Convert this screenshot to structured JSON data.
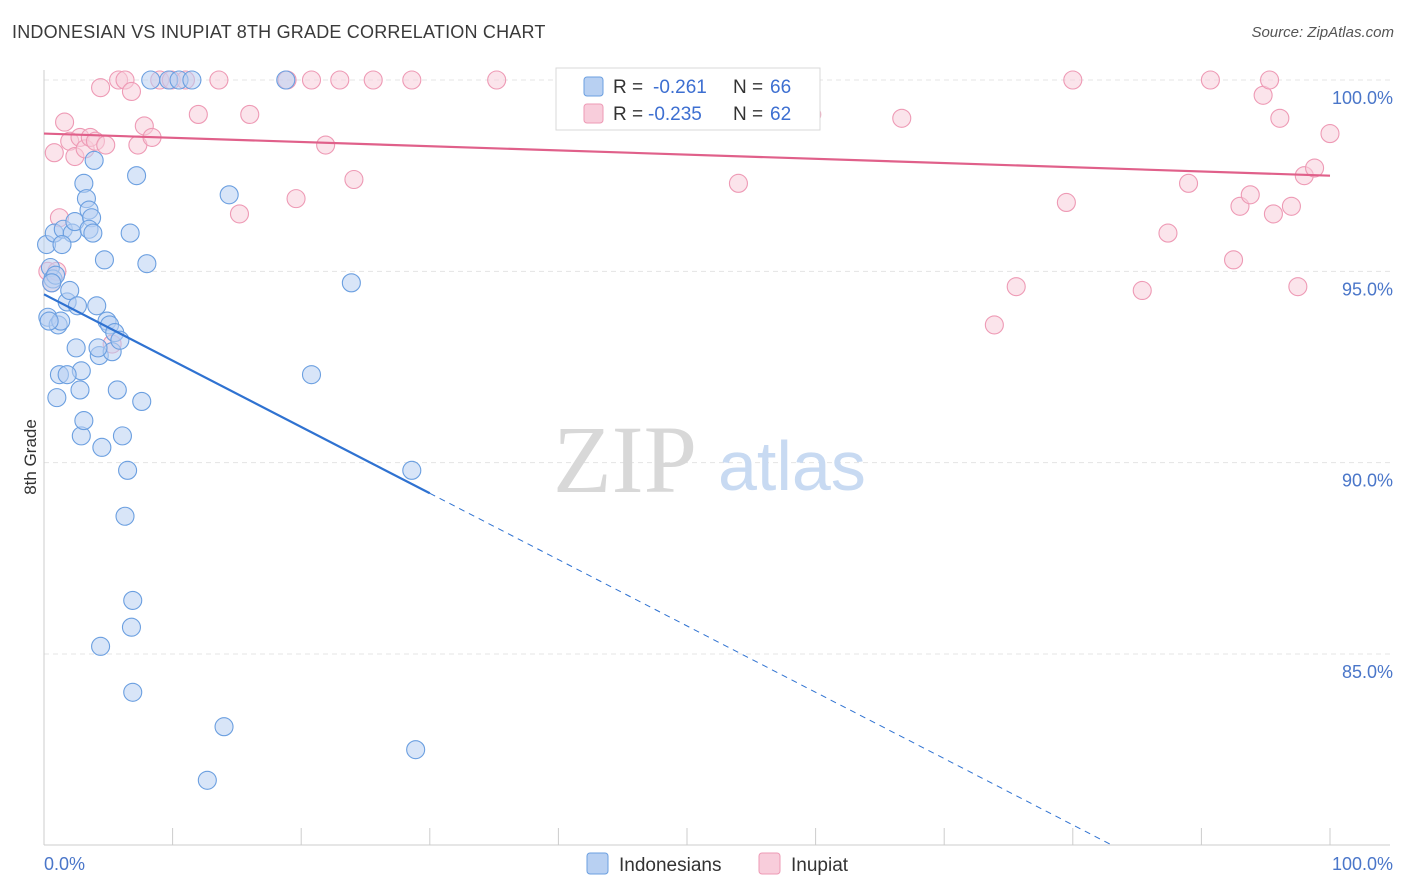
{
  "header": {
    "title": "INDONESIAN VS INUPIAT 8TH GRADE CORRELATION CHART",
    "source": "Source: ZipAtlas.com"
  },
  "watermark": {
    "zip": "ZIP",
    "atlas": "atlas"
  },
  "chart_data": {
    "type": "scatter",
    "title": "INDONESIAN VS INUPIAT 8TH GRADE CORRELATION CHART",
    "xlabel": "",
    "ylabel": "8th Grade",
    "xlim": [
      0,
      100
    ],
    "ylim": [
      80,
      100.8
    ],
    "x_tick_labels": [
      "0.0%",
      "100.0%"
    ],
    "y_ticks": [
      85,
      90,
      95,
      100
    ],
    "y_tick_labels": [
      "85.0%",
      "90.0%",
      "95.0%",
      "100.0%"
    ],
    "grid": true,
    "legend": {
      "position": "top-center",
      "entries": [
        {
          "r_label": "R =",
          "r_value": "-0.261",
          "n_label": "N =",
          "n_value": "66"
        },
        {
          "r_label": "R =",
          "r_value": "-0.235",
          "n_label": "N =",
          "n_value": "62"
        }
      ]
    },
    "series": [
      {
        "name": "Indonesians",
        "color": "#6b9fe0",
        "fill": "#b8d0f2",
        "line_color": "#2f72d1",
        "trend": {
          "x0": 0,
          "y0": 94.4,
          "x1": 30,
          "y1": 89.2,
          "dash_to_x": 100
        },
        "points": [
          [
            0.2,
            95.7
          ],
          [
            0.5,
            95.1
          ],
          [
            0.7,
            94.8
          ],
          [
            0.9,
            94.9
          ],
          [
            0.3,
            93.8
          ],
          [
            0.8,
            96.0
          ],
          [
            1.1,
            93.6
          ],
          [
            1.3,
            93.7
          ],
          [
            1.2,
            92.3
          ],
          [
            1.0,
            91.7
          ],
          [
            1.5,
            96.1
          ],
          [
            1.8,
            94.2
          ],
          [
            2.0,
            94.5
          ],
          [
            2.2,
            96.0
          ],
          [
            2.4,
            96.3
          ],
          [
            2.6,
            94.1
          ],
          [
            2.8,
            91.9
          ],
          [
            2.9,
            92.4
          ],
          [
            3.1,
            97.3
          ],
          [
            3.3,
            96.9
          ],
          [
            3.5,
            96.6
          ],
          [
            3.7,
            96.4
          ],
          [
            3.9,
            97.9
          ],
          [
            4.1,
            94.1
          ],
          [
            4.3,
            92.8
          ],
          [
            4.5,
            90.4
          ],
          [
            4.7,
            95.3
          ],
          [
            4.9,
            93.7
          ],
          [
            5.1,
            93.6
          ],
          [
            5.3,
            92.9
          ],
          [
            5.5,
            93.4
          ],
          [
            5.7,
            91.9
          ],
          [
            5.9,
            93.2
          ],
          [
            6.1,
            90.7
          ],
          [
            6.3,
            88.6
          ],
          [
            6.5,
            89.8
          ],
          [
            6.7,
            96.0
          ],
          [
            6.9,
            86.4
          ],
          [
            7.2,
            97.5
          ],
          [
            7.6,
            91.6
          ],
          [
            8.0,
            95.2
          ],
          [
            8.3,
            100.0
          ],
          [
            9.7,
            100.0
          ],
          [
            10.5,
            100.0
          ],
          [
            11.5,
            100.0
          ],
          [
            14.4,
            97.0
          ],
          [
            18.8,
            100.0
          ],
          [
            20.8,
            92.3
          ],
          [
            23.9,
            94.7
          ],
          [
            28.6,
            89.8
          ],
          [
            28.9,
            82.5
          ],
          [
            14.0,
            83.1
          ],
          [
            12.7,
            81.7
          ],
          [
            6.8,
            85.7
          ],
          [
            6.9,
            84.0
          ],
          [
            4.4,
            85.2
          ],
          [
            2.9,
            90.7
          ],
          [
            3.1,
            91.1
          ],
          [
            1.8,
            92.3
          ],
          [
            2.5,
            93.0
          ],
          [
            3.5,
            96.1
          ],
          [
            3.8,
            96.0
          ],
          [
            4.2,
            93.0
          ],
          [
            0.6,
            94.7
          ],
          [
            1.4,
            95.7
          ],
          [
            0.4,
            93.7
          ]
        ]
      },
      {
        "name": "Inupiat",
        "color": "#ee9ab5",
        "fill": "#f8cddb",
        "line_color": "#e0608a",
        "trend": {
          "x0": 0,
          "y0": 98.6,
          "x1": 100,
          "y1": 97.5
        },
        "points": [
          [
            0.3,
            95.0
          ],
          [
            0.6,
            94.7
          ],
          [
            0.8,
            98.1
          ],
          [
            1.2,
            96.4
          ],
          [
            1.6,
            98.9
          ],
          [
            2.0,
            98.4
          ],
          [
            2.4,
            98.0
          ],
          [
            2.8,
            98.5
          ],
          [
            3.2,
            98.2
          ],
          [
            3.6,
            98.5
          ],
          [
            4.0,
            98.4
          ],
          [
            4.4,
            99.8
          ],
          [
            4.8,
            98.3
          ],
          [
            5.3,
            93.1
          ],
          [
            5.8,
            100.0
          ],
          [
            6.3,
            100.0
          ],
          [
            6.8,
            99.7
          ],
          [
            7.3,
            98.3
          ],
          [
            7.8,
            98.8
          ],
          [
            8.4,
            98.5
          ],
          [
            9.0,
            100.0
          ],
          [
            9.9,
            100.0
          ],
          [
            11.0,
            100.0
          ],
          [
            12.0,
            99.1
          ],
          [
            13.6,
            100.0
          ],
          [
            15.2,
            96.5
          ],
          [
            16.0,
            99.1
          ],
          [
            18.9,
            100.0
          ],
          [
            19.6,
            96.9
          ],
          [
            20.8,
            100.0
          ],
          [
            21.9,
            98.3
          ],
          [
            23.0,
            100.0
          ],
          [
            24.1,
            97.4
          ],
          [
            25.6,
            100.0
          ],
          [
            28.6,
            100.0
          ],
          [
            35.2,
            100.0
          ],
          [
            46.8,
            99.1
          ],
          [
            52.5,
            100.0
          ],
          [
            54.0,
            97.3
          ],
          [
            59.7,
            99.1
          ],
          [
            66.7,
            99.0
          ],
          [
            73.9,
            93.6
          ],
          [
            75.6,
            94.6
          ],
          [
            79.5,
            96.8
          ],
          [
            80.0,
            100.0
          ],
          [
            85.4,
            94.5
          ],
          [
            87.4,
            96.0
          ],
          [
            89.0,
            97.3
          ],
          [
            92.5,
            95.3
          ],
          [
            93.0,
            96.7
          ],
          [
            93.8,
            97.0
          ],
          [
            94.8,
            99.6
          ],
          [
            95.6,
            96.5
          ],
          [
            97.0,
            96.7
          ],
          [
            97.5,
            94.6
          ],
          [
            98.0,
            97.5
          ],
          [
            98.8,
            97.7
          ],
          [
            100.0,
            98.6
          ],
          [
            1.0,
            95.0
          ],
          [
            90.7,
            100.0
          ],
          [
            96.1,
            99.0
          ],
          [
            95.3,
            100.0
          ]
        ]
      }
    ]
  }
}
